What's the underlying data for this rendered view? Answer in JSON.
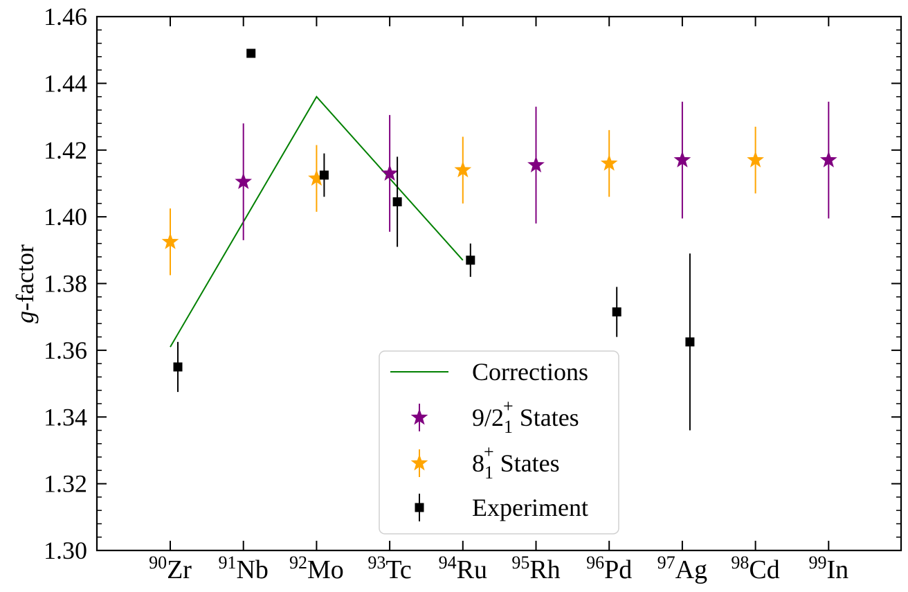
{
  "chart_data": {
    "type": "scatter",
    "title": "",
    "xlabel": "",
    "ylabel_italic": "g",
    "ylabel_rest": "-factor",
    "ylim": [
      1.3,
      1.46
    ],
    "yticks": [
      "1.30",
      "1.32",
      "1.34",
      "1.36",
      "1.38",
      "1.40",
      "1.42",
      "1.44",
      "1.46"
    ],
    "categories": [
      {
        "mass": "90",
        "element": "Zr"
      },
      {
        "mass": "91",
        "element": "Nb"
      },
      {
        "mass": "92",
        "element": "Mo"
      },
      {
        "mass": "93",
        "element": "Tc"
      },
      {
        "mass": "94",
        "element": "Ru"
      },
      {
        "mass": "95",
        "element": "Rh"
      },
      {
        "mass": "96",
        "element": "Pd"
      },
      {
        "mass": "97",
        "element": "Ag"
      },
      {
        "mass": "98",
        "element": "Cd"
      },
      {
        "mass": "99",
        "element": "In"
      }
    ],
    "legend_position": "lower-center",
    "grid": false,
    "series": [
      {
        "name": "Corrections",
        "kind": "line",
        "color": "#008000",
        "points": [
          {
            "i": 0,
            "y": 1.361
          },
          {
            "i": 2,
            "y": 1.436
          },
          {
            "i": 4,
            "y": 1.387
          }
        ]
      },
      {
        "name": "9/2_1^+ States",
        "legend_main": "9/2",
        "legend_sub": "1",
        "legend_sup": "+",
        "legend_tail": " States",
        "kind": "star",
        "color": "#800080",
        "points": [
          {
            "i": 1,
            "y": 1.4105,
            "err": 0.0175
          },
          {
            "i": 3,
            "y": 1.413,
            "err": 0.0175
          },
          {
            "i": 5,
            "y": 1.4155,
            "err": 0.0175
          },
          {
            "i": 7,
            "y": 1.417,
            "err": 0.0175
          },
          {
            "i": 9,
            "y": 1.417,
            "err": 0.0175
          }
        ]
      },
      {
        "name": "8_1^+ States",
        "legend_main": "8",
        "legend_sub": "1",
        "legend_sup": "+",
        "legend_tail": " States",
        "kind": "star",
        "color": "#FFA500",
        "points": [
          {
            "i": 0,
            "y": 1.3925,
            "err": 0.01
          },
          {
            "i": 2,
            "y": 1.4115,
            "err": 0.01
          },
          {
            "i": 4,
            "y": 1.414,
            "err": 0.01
          },
          {
            "i": 6,
            "y": 1.416,
            "err": 0.01
          },
          {
            "i": 8,
            "y": 1.417,
            "err": 0.01
          }
        ]
      },
      {
        "name": "Experiment",
        "legend_main": "Experiment",
        "kind": "square",
        "color": "#000000",
        "points": [
          {
            "i": 0,
            "y": 1.355,
            "err": 0.0075
          },
          {
            "i": 1,
            "y": 1.449,
            "err": 0
          },
          {
            "i": 2,
            "y": 1.4125,
            "err": 0.0065
          },
          {
            "i": 3,
            "y": 1.4045,
            "err": 0.0135
          },
          {
            "i": 4,
            "y": 1.387,
            "err": 0.005
          },
          {
            "i": 6,
            "y": 1.3715,
            "err": 0.0075
          },
          {
            "i": 7,
            "y": 1.3625,
            "err": 0.0265
          }
        ]
      }
    ]
  }
}
